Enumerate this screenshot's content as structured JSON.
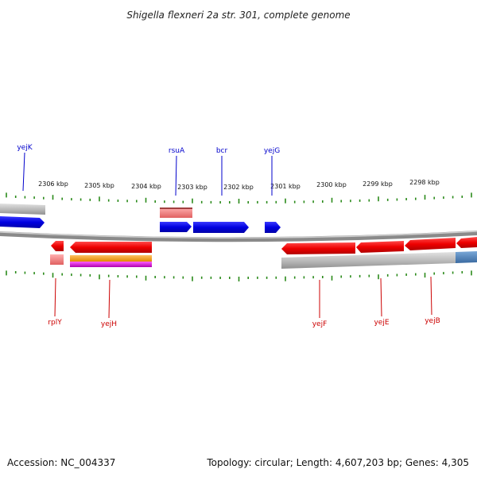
{
  "title": "Shigella flexneri 2a str. 301, complete genome",
  "footer": {
    "accession": "Accession: NC_004337",
    "summary": "Topology: circular; Length: 4,607,203 bp; Genes: 4,305"
  },
  "scale": {
    "ticks": [
      "2306 kbp",
      "2305 kbp",
      "2304 kbp",
      "2303 kbp",
      "2302 kbp",
      "2301 kbp",
      "2300 kbp",
      "2299 kbp",
      "2298 kbp"
    ]
  },
  "genes": {
    "top": [
      "yejK",
      "rsuA",
      "bcr",
      "yejG"
    ],
    "bottom": [
      "rplY",
      "yejH",
      "yejF",
      "yejE",
      "yejB"
    ]
  },
  "colors": {
    "forward": "#0000ee",
    "reverse": "#ee0000",
    "tick": "#2a8a1a",
    "label_forward": "#0000cc",
    "label_reverse": "#cc0000",
    "backbone": "#8a8a8a"
  }
}
